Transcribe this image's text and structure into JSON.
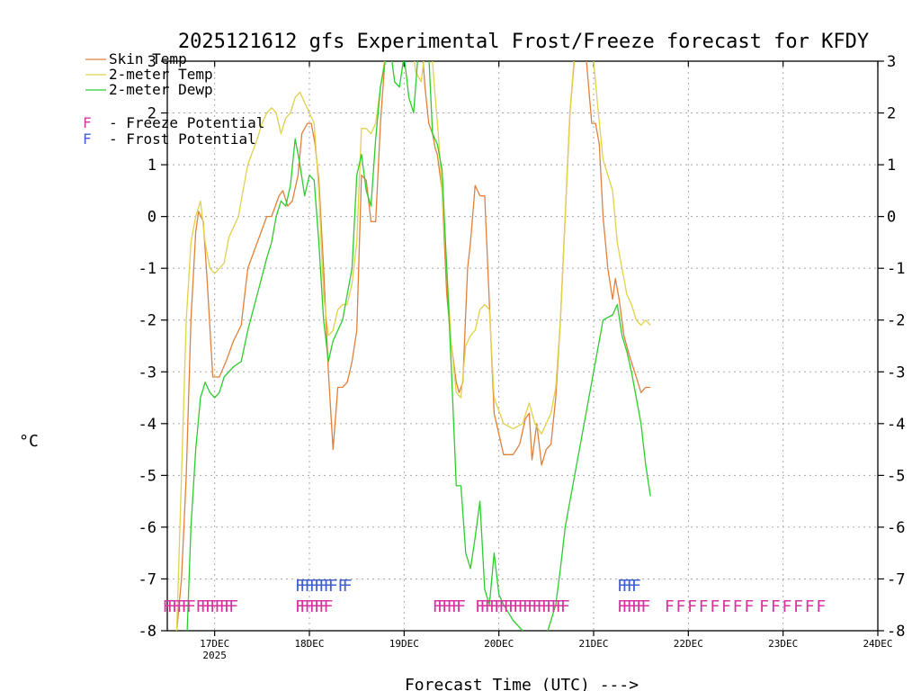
{
  "chart_data": {
    "type": "line",
    "title": "2025121612 gfs Experimental Frost/Freeze forecast for KFDY",
    "ylabel": "°C",
    "xlabel": "Forecast Time (UTC) --->",
    "ylim": [
      -8,
      3
    ],
    "xlim": [
      0,
      7.5
    ],
    "yticks": [
      -8,
      -7,
      -6,
      -5,
      -4,
      -3,
      -2,
      -1,
      0,
      1,
      2,
      3
    ],
    "ytick_labels": [
      "-8",
      "-7",
      "-6",
      "-5",
      "-4",
      "-3",
      "-2",
      "-1",
      "0",
      "1",
      "2",
      "3"
    ],
    "xticks": [
      {
        "x": 0.5,
        "label": "17DEC",
        "sublabel": "2025"
      },
      {
        "x": 1.5,
        "label": "18DEC",
        "sublabel": ""
      },
      {
        "x": 2.5,
        "label": "19DEC",
        "sublabel": ""
      },
      {
        "x": 3.5,
        "label": "20DEC",
        "sublabel": ""
      },
      {
        "x": 4.5,
        "label": "21DEC",
        "sublabel": ""
      },
      {
        "x": 5.5,
        "label": "22DEC",
        "sublabel": ""
      },
      {
        "x": 6.5,
        "label": "23DEC",
        "sublabel": ""
      },
      {
        "x": 7.5,
        "label": "24DEC",
        "sublabel": ""
      }
    ],
    "series": [
      {
        "name": "Skin Temp",
        "color": "#e0803a",
        "points": [
          [
            0.06,
            -9
          ],
          [
            0.1,
            -8
          ],
          [
            0.15,
            -7
          ],
          [
            0.2,
            -5
          ],
          [
            0.25,
            -2
          ],
          [
            0.3,
            -0.3
          ],
          [
            0.33,
            0.1
          ],
          [
            0.38,
            -0.1
          ],
          [
            0.42,
            -1.2
          ],
          [
            0.48,
            -3.1
          ],
          [
            0.55,
            -3.1
          ],
          [
            0.62,
            -2.8
          ],
          [
            0.7,
            -2.4
          ],
          [
            0.78,
            -2.1
          ],
          [
            0.85,
            -1
          ],
          [
            0.95,
            -0.5
          ],
          [
            1.05,
            0
          ],
          [
            1.1,
            0
          ],
          [
            1.18,
            0.4
          ],
          [
            1.22,
            0.5
          ],
          [
            1.27,
            0.2
          ],
          [
            1.32,
            0.3
          ],
          [
            1.38,
            0.8
          ],
          [
            1.42,
            1.6
          ],
          [
            1.48,
            1.8
          ],
          [
            1.52,
            1.8
          ],
          [
            1.56,
            1.4
          ],
          [
            1.6,
            0.7
          ],
          [
            1.65,
            -1
          ],
          [
            1.7,
            -3
          ],
          [
            1.75,
            -4.5
          ],
          [
            1.8,
            -3.3
          ],
          [
            1.85,
            -3.3
          ],
          [
            1.9,
            -3.2
          ],
          [
            1.95,
            -2.8
          ],
          [
            2.0,
            -2.2
          ],
          [
            2.05,
            0.8
          ],
          [
            2.1,
            0.7
          ],
          [
            2.15,
            -0.1
          ],
          [
            2.2,
            -0.1
          ],
          [
            2.25,
            1.8
          ],
          [
            2.3,
            3.1
          ],
          [
            2.4,
            3.5
          ],
          [
            2.5,
            3.5
          ],
          [
            2.6,
            3.5
          ],
          [
            2.68,
            3.5
          ],
          [
            2.72,
            2.5
          ],
          [
            2.76,
            1.8
          ],
          [
            2.8,
            1.6
          ],
          [
            2.83,
            1.3
          ],
          [
            2.85,
            1.2
          ],
          [
            2.9,
            0.5
          ],
          [
            2.95,
            -1.5
          ],
          [
            3.0,
            -2.5
          ],
          [
            3.05,
            -3.2
          ],
          [
            3.08,
            -3.4
          ],
          [
            3.12,
            -3.2
          ],
          [
            3.17,
            -1
          ],
          [
            3.2,
            -0.5
          ],
          [
            3.25,
            0.6
          ],
          [
            3.3,
            0.4
          ],
          [
            3.35,
            0.4
          ],
          [
            3.45,
            -3.8
          ],
          [
            3.55,
            -4.6
          ],
          [
            3.65,
            -4.6
          ],
          [
            3.72,
            -4.4
          ],
          [
            3.78,
            -3.9
          ],
          [
            3.82,
            -3.8
          ],
          [
            3.85,
            -4.7
          ],
          [
            3.9,
            -4
          ],
          [
            3.95,
            -4.8
          ],
          [
            4.0,
            -4.5
          ],
          [
            4.05,
            -4.4
          ],
          [
            4.1,
            -3.5
          ],
          [
            4.15,
            -2
          ],
          [
            4.2,
            0
          ],
          [
            4.25,
            2
          ],
          [
            4.3,
            3.1
          ],
          [
            4.35,
            3.5
          ],
          [
            4.38,
            3.5
          ],
          [
            4.42,
            3.1
          ],
          [
            4.48,
            1.8
          ],
          [
            4.52,
            1.8
          ],
          [
            4.56,
            1.4
          ],
          [
            4.6,
            0
          ],
          [
            4.65,
            -1
          ],
          [
            4.7,
            -1.6
          ],
          [
            4.73,
            -1.2
          ],
          [
            4.77,
            -1.6
          ],
          [
            4.82,
            -2.3
          ],
          [
            4.88,
            -2.7
          ],
          [
            4.95,
            -3.1
          ],
          [
            5.0,
            -3.4
          ],
          [
            5.05,
            -3.3
          ],
          [
            5.1,
            -3.3
          ]
        ]
      },
      {
        "name": "2-meter Temp",
        "color": "#e0d24a",
        "points": [
          [
            0.1,
            -8
          ],
          [
            0.15,
            -5
          ],
          [
            0.2,
            -2
          ],
          [
            0.25,
            -0.5
          ],
          [
            0.3,
            0
          ],
          [
            0.35,
            0.3
          ],
          [
            0.4,
            -0.5
          ],
          [
            0.45,
            -1
          ],
          [
            0.5,
            -1.1
          ],
          [
            0.55,
            -1
          ],
          [
            0.6,
            -0.9
          ],
          [
            0.65,
            -0.4
          ],
          [
            0.75,
            0
          ],
          [
            0.85,
            1
          ],
          [
            0.95,
            1.5
          ],
          [
            1.0,
            1.8
          ],
          [
            1.05,
            2
          ],
          [
            1.1,
            2.1
          ],
          [
            1.15,
            2
          ],
          [
            1.2,
            1.6
          ],
          [
            1.25,
            1.9
          ],
          [
            1.3,
            2
          ],
          [
            1.35,
            2.3
          ],
          [
            1.4,
            2.4
          ],
          [
            1.45,
            2.2
          ],
          [
            1.5,
            2
          ],
          [
            1.55,
            1.8
          ],
          [
            1.6,
            0.5
          ],
          [
            1.65,
            -1.5
          ],
          [
            1.7,
            -2.3
          ],
          [
            1.75,
            -2.2
          ],
          [
            1.8,
            -1.8
          ],
          [
            1.85,
            -1.7
          ],
          [
            1.9,
            -1.7
          ],
          [
            1.95,
            -1.3
          ],
          [
            2.0,
            -0.5
          ],
          [
            2.05,
            1.7
          ],
          [
            2.1,
            1.7
          ],
          [
            2.15,
            1.6
          ],
          [
            2.2,
            1.8
          ],
          [
            2.25,
            2.5
          ],
          [
            2.3,
            3.1
          ],
          [
            2.4,
            3.5
          ],
          [
            2.5,
            3.5
          ],
          [
            2.58,
            3.5
          ],
          [
            2.62,
            2.8
          ],
          [
            2.68,
            2.6
          ],
          [
            2.72,
            3.2
          ],
          [
            2.78,
            3.5
          ],
          [
            2.82,
            2.5
          ],
          [
            2.86,
            1.6
          ],
          [
            2.9,
            0.5
          ],
          [
            2.95,
            -1
          ],
          [
            3.0,
            -2.5
          ],
          [
            3.05,
            -3.4
          ],
          [
            3.1,
            -3.5
          ],
          [
            3.15,
            -2.5
          ],
          [
            3.2,
            -2.3
          ],
          [
            3.25,
            -2.2
          ],
          [
            3.3,
            -1.8
          ],
          [
            3.35,
            -1.7
          ],
          [
            3.4,
            -1.8
          ],
          [
            3.45,
            -3.5
          ],
          [
            3.55,
            -4
          ],
          [
            3.65,
            -4.1
          ],
          [
            3.75,
            -4
          ],
          [
            3.82,
            -3.6
          ],
          [
            3.88,
            -4
          ],
          [
            3.95,
            -4.2
          ],
          [
            4.0,
            -4
          ],
          [
            4.05,
            -3.8
          ],
          [
            4.1,
            -3.3
          ],
          [
            4.15,
            -2
          ],
          [
            4.2,
            0
          ],
          [
            4.25,
            2
          ],
          [
            4.3,
            3.2
          ],
          [
            4.35,
            3.5
          ],
          [
            4.45,
            3.5
          ],
          [
            4.5,
            3
          ],
          [
            4.55,
            2
          ],
          [
            4.6,
            1.1
          ],
          [
            4.65,
            0.8
          ],
          [
            4.7,
            0.5
          ],
          [
            4.75,
            -0.5
          ],
          [
            4.8,
            -1
          ],
          [
            4.85,
            -1.5
          ],
          [
            4.9,
            -1.7
          ],
          [
            4.95,
            -2
          ],
          [
            5.0,
            -2.1
          ],
          [
            5.05,
            -2
          ],
          [
            5.1,
            -2.1
          ]
        ]
      },
      {
        "name": "2-meter Dewp",
        "color": "#2ecc2e",
        "points": [
          [
            0.2,
            -8.5
          ],
          [
            0.25,
            -6
          ],
          [
            0.3,
            -4.5
          ],
          [
            0.35,
            -3.5
          ],
          [
            0.4,
            -3.2
          ],
          [
            0.45,
            -3.4
          ],
          [
            0.5,
            -3.5
          ],
          [
            0.55,
            -3.4
          ],
          [
            0.6,
            -3.1
          ],
          [
            0.7,
            -2.9
          ],
          [
            0.78,
            -2.8
          ],
          [
            0.85,
            -2.2
          ],
          [
            0.95,
            -1.5
          ],
          [
            1.05,
            -0.8
          ],
          [
            1.1,
            -0.5
          ],
          [
            1.15,
            0
          ],
          [
            1.2,
            0.3
          ],
          [
            1.25,
            0.2
          ],
          [
            1.3,
            0.6
          ],
          [
            1.35,
            1.5
          ],
          [
            1.4,
            1
          ],
          [
            1.45,
            0.4
          ],
          [
            1.5,
            0.8
          ],
          [
            1.55,
            0.7
          ],
          [
            1.6,
            -0.5
          ],
          [
            1.65,
            -2
          ],
          [
            1.7,
            -2.8
          ],
          [
            1.75,
            -2.4
          ],
          [
            1.8,
            -2.2
          ],
          [
            1.85,
            -2
          ],
          [
            1.9,
            -1.5
          ],
          [
            1.95,
            -1
          ],
          [
            2.0,
            0.8
          ],
          [
            2.05,
            1.2
          ],
          [
            2.1,
            0.5
          ],
          [
            2.15,
            0.2
          ],
          [
            2.2,
            1.5
          ],
          [
            2.25,
            2.5
          ],
          [
            2.3,
            3
          ],
          [
            2.35,
            3.3
          ],
          [
            2.4,
            2.6
          ],
          [
            2.45,
            2.5
          ],
          [
            2.5,
            3.1
          ],
          [
            2.55,
            2.3
          ],
          [
            2.6,
            2
          ],
          [
            2.65,
            3.2
          ],
          [
            2.7,
            3.5
          ],
          [
            2.75,
            3.5
          ],
          [
            2.8,
            1.6
          ],
          [
            2.85,
            1.4
          ],
          [
            2.9,
            0.9
          ],
          [
            2.95,
            -1
          ],
          [
            3.0,
            -3
          ],
          [
            3.05,
            -5.2
          ],
          [
            3.1,
            -5.2
          ],
          [
            3.15,
            -6.5
          ],
          [
            3.2,
            -6.8
          ],
          [
            3.25,
            -6.2
          ],
          [
            3.3,
            -5.5
          ],
          [
            3.35,
            -7.2
          ],
          [
            3.4,
            -7.5
          ],
          [
            3.45,
            -6.5
          ],
          [
            3.5,
            -7.3
          ],
          [
            3.55,
            -7.5
          ],
          [
            3.65,
            -7.8
          ],
          [
            3.75,
            -8
          ],
          [
            3.9,
            -8.3
          ],
          [
            4.0,
            -8.1
          ],
          [
            4.05,
            -7.8
          ],
          [
            4.1,
            -7.5
          ],
          [
            4.15,
            -6.8
          ],
          [
            4.2,
            -6
          ],
          [
            4.3,
            -5
          ],
          [
            4.4,
            -4
          ],
          [
            4.5,
            -3
          ],
          [
            4.6,
            -2
          ],
          [
            4.7,
            -1.9
          ],
          [
            4.75,
            -1.7
          ],
          [
            4.8,
            -2.3
          ],
          [
            4.85,
            -2.6
          ],
          [
            4.9,
            -3
          ],
          [
            4.95,
            -3.5
          ],
          [
            5.0,
            -4
          ],
          [
            5.05,
            -4.8
          ],
          [
            5.1,
            -5.4
          ]
        ]
      }
    ],
    "legend": [
      {
        "label": "Skin Temp",
        "color": "#e0803a"
      },
      {
        "label": "2-meter Temp",
        "color": "#e0d24a"
      },
      {
        "label": "2-meter Dewp",
        "color": "#2ecc2e"
      }
    ],
    "potential_legend": [
      {
        "symbol": "F",
        "label": "Freeze Potential",
        "color": "#d6339e"
      },
      {
        "symbol": "F",
        "label": "Frost Potential",
        "color": "#4060d0"
      }
    ],
    "freeze_markers": {
      "symbol": "F",
      "color": "#d6339e",
      "y": -7.5,
      "x": [
        0.0,
        0.05,
        0.1,
        0.15,
        0.2,
        0.25,
        0.35,
        0.4,
        0.45,
        0.5,
        0.55,
        0.6,
        0.65,
        0.7,
        1.4,
        1.45,
        1.5,
        1.55,
        1.6,
        1.65,
        1.7,
        2.85,
        2.9,
        2.95,
        3.0,
        3.05,
        3.1,
        3.3,
        3.35,
        3.4,
        3.45,
        3.5,
        3.55,
        3.6,
        3.65,
        3.7,
        3.75,
        3.8,
        3.85,
        3.9,
        3.95,
        4.0,
        4.05,
        4.1,
        4.15,
        4.2,
        4.8,
        4.85,
        4.9,
        4.95,
        5.0,
        5.05,
        5.3,
        5.42,
        5.54,
        5.66,
        5.78,
        5.9,
        6.02,
        6.14,
        6.3,
        6.42,
        6.54,
        6.66,
        6.78,
        6.9
      ]
    },
    "frost_markers": {
      "symbol": "F",
      "color": "#4060d0",
      "y": -7.1,
      "x": [
        1.4,
        1.45,
        1.5,
        1.55,
        1.6,
        1.65,
        1.7,
        1.75,
        1.85,
        1.9,
        4.8,
        4.85,
        4.9,
        4.95
      ]
    }
  }
}
